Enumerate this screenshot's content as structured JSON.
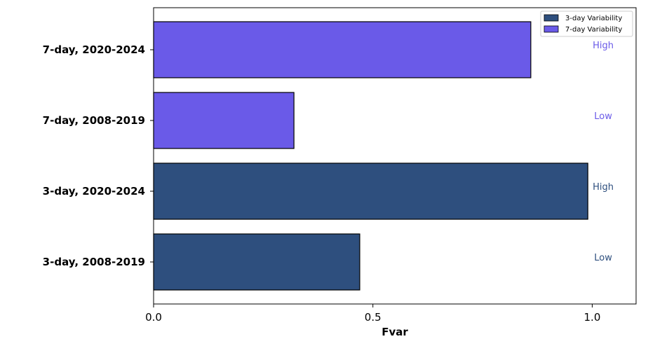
{
  "chart_data": {
    "type": "bar",
    "orientation": "horizontal",
    "title": "",
    "xlabel": "Fvar",
    "ylabel": "",
    "xlim": [
      0,
      1.1
    ],
    "xticks": [
      0.0,
      0.5,
      1.0
    ],
    "xtick_labels": [
      "0.0",
      "0.5",
      "1.0"
    ],
    "grid": false,
    "legend_position": "top-right",
    "categories": [
      "3-day, 2008-2019",
      "3-day, 2020-2024",
      "7-day, 2008-2019",
      "7-day, 2020-2024"
    ],
    "values": [
      0.47,
      0.99,
      0.32,
      0.86
    ],
    "bar_series": [
      "3-day Variability",
      "3-day Variability",
      "7-day Variability",
      "7-day Variability"
    ],
    "annotations": [
      "Low",
      "High",
      "Low",
      "High"
    ],
    "series": [
      {
        "name": "3-day Variability",
        "color": "#2e4f7e"
      },
      {
        "name": "7-day Variability",
        "color": "#6a5ae8"
      }
    ]
  }
}
